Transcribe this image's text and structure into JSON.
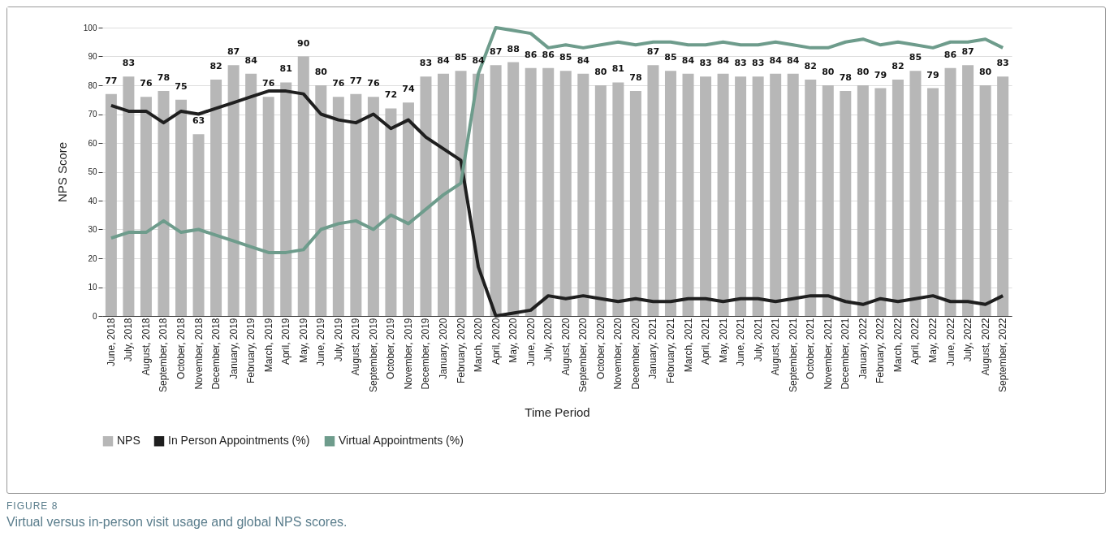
{
  "chart_data": {
    "type": "bar",
    "xlabel": "Time Period",
    "ylabel": "NPS Score",
    "categories": [
      "June, 2018",
      "July, 2018",
      "August, 2018",
      "September, 2018",
      "October, 2018",
      "November, 2018",
      "December, 2018",
      "January, 2019",
      "February, 2019",
      "March, 2019",
      "April, 2019",
      "May, 2019",
      "June, 2019",
      "July, 2019",
      "August, 2019",
      "September, 2019",
      "October, 2019",
      "November, 2019",
      "December, 2019",
      "January, 2020",
      "February, 2020",
      "March, 2020",
      "April, 2020",
      "May, 2020",
      "June, 2020",
      "July, 2020",
      "August, 2020",
      "September, 2020",
      "October, 2020",
      "November, 2020",
      "December, 2020",
      "January, 2021",
      "February, 2021",
      "March, 2021",
      "April, 2021",
      "May, 2021",
      "June, 2021",
      "July, 2021",
      "August, 2021",
      "September, 2021",
      "October, 2021",
      "November, 2021",
      "December, 2021",
      "January, 2022",
      "February, 2022",
      "March, 2022",
      "April, 2022",
      "May, 2022",
      "June, 2022",
      "July, 2022",
      "August, 2022",
      "September, 2022"
    ],
    "series": [
      {
        "name": "NPS",
        "color": "#b7b7b7",
        "values": [
          77,
          83,
          76,
          78,
          75,
          63,
          82,
          87,
          84,
          76,
          81,
          90,
          80,
          76,
          77,
          76,
          72,
          74,
          83,
          84,
          85,
          84,
          87,
          88,
          86,
          86,
          85,
          84,
          80,
          81,
          78,
          87,
          85,
          84,
          83,
          84,
          83,
          83,
          84,
          84,
          82,
          80,
          78,
          80,
          79,
          82,
          85,
          79,
          86,
          87,
          80,
          83
        ],
        "value_labels": [
          "77",
          "83",
          "76",
          "78",
          "75",
          "63",
          "82",
          "87",
          "84",
          "76",
          "81",
          "90",
          "80",
          "76",
          "77",
          "76",
          "72",
          "74",
          "83",
          "84",
          "85",
          "84",
          "87",
          "88",
          "86",
          "86",
          "85",
          "84",
          "80",
          "81",
          "78",
          "87",
          "85",
          "84",
          "83",
          "84",
          "83",
          "83",
          "84",
          "84",
          "82",
          "80",
          "78",
          "80",
          "79",
          "82",
          "85",
          "79",
          "86",
          "87",
          "80",
          "83"
        ]
      },
      {
        "name": "In Person Appointments (%)",
        "type": "line",
        "color": "#1f1f1f",
        "values": [
          73,
          71,
          71,
          67,
          71,
          70,
          72,
          74,
          76,
          78,
          78,
          77,
          70,
          68,
          67,
          70,
          65,
          68,
          62,
          58,
          54,
          17,
          0,
          1,
          2,
          7,
          6,
          7,
          6,
          5,
          6,
          5,
          5,
          6,
          6,
          5,
          6,
          6,
          5,
          6,
          7,
          7,
          5,
          4,
          6,
          5,
          6,
          7,
          5,
          5,
          4,
          7
        ]
      },
      {
        "name": "Virtual Appointments (%)",
        "type": "line",
        "color": "#6e9c8c",
        "values": [
          27,
          29,
          29,
          33,
          29,
          30,
          28,
          26,
          24,
          22,
          22,
          23,
          30,
          32,
          33,
          30,
          35,
          32,
          37,
          42,
          46,
          84,
          100,
          99,
          98,
          93,
          94,
          93,
          94,
          95,
          94,
          95,
          95,
          94,
          94,
          95,
          94,
          94,
          95,
          94,
          93,
          93,
          95,
          96,
          94,
          95,
          94,
          93,
          95,
          95,
          96,
          93
        ]
      }
    ],
    "ylim": [
      0,
      100
    ],
    "yticks": [
      0,
      10,
      20,
      30,
      40,
      50,
      60,
      70,
      80,
      90,
      100
    ],
    "grid": "y",
    "legend": "bottom",
    "marker": "none",
    "line_style": "solid",
    "annotations": [
      "FIGURE 8",
      "Virtual versus in-person visit usage and global NPS scores."
    ]
  }
}
